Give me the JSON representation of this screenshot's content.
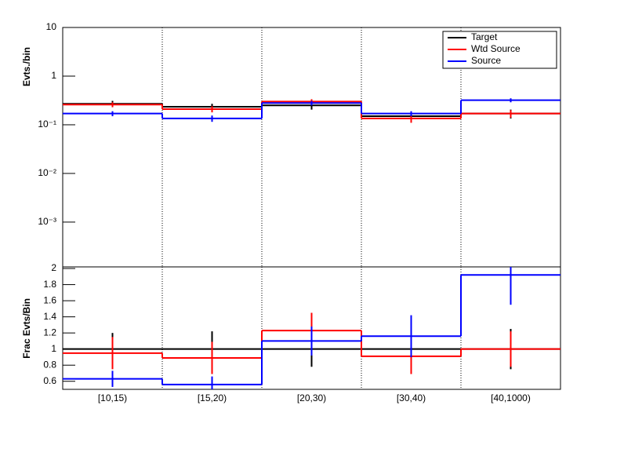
{
  "chart_data": [
    {
      "type": "step",
      "y_label": "Evts./bin",
      "log_y": true,
      "ylim": [
        0.00012,
        10
      ],
      "yticks": [
        {
          "value": 0.001,
          "label": "10⁻³"
        },
        {
          "value": 0.01,
          "label": "10⁻²"
        },
        {
          "value": 0.1,
          "label": "10⁻¹"
        },
        1,
        10
      ],
      "legend": "top-right",
      "series": [
        {
          "name": "Target",
          "color": "#000000",
          "values": [
            0.27,
            0.235,
            0.25,
            0.15,
            0.17
          ],
          "errors": [
            0.04,
            0.035,
            0.045,
            0.03,
            0.035
          ]
        },
        {
          "name": "Wtd Source",
          "color": "#ff0000",
          "values": [
            0.26,
            0.21,
            0.3,
            0.135,
            0.17
          ],
          "errors": [
            0.03,
            0.03,
            0.035,
            0.025,
            0.03
          ]
        },
        {
          "name": "Source",
          "color": "#0000ff",
          "values": [
            0.17,
            0.135,
            0.28,
            0.17,
            0.32
          ],
          "errors": [
            0.02,
            0.02,
            0.03,
            0.02,
            0.03
          ]
        }
      ]
    },
    {
      "type": "step",
      "y_label": "Frac Evts/Bin",
      "ylim": [
        0.5,
        2.02
      ],
      "yticks": [
        0.6,
        0.8,
        1,
        1.2,
        1.4,
        1.6,
        1.8,
        2
      ],
      "categories": [
        "[10,15)",
        "[15,20)",
        "[20,30)",
        "[30,40)",
        "[40,1000)"
      ],
      "series": [
        {
          "name": "Target",
          "color": "#000000",
          "values": [
            1,
            1,
            1,
            1,
            1
          ],
          "errors": [
            0.2,
            0.22,
            0.22,
            0.2,
            0.25
          ]
        },
        {
          "name": "Wtd Source",
          "color": "#ff0000",
          "values": [
            0.95,
            0.89,
            1.23,
            0.91,
            1.0
          ],
          "errors": [
            0.2,
            0.2,
            0.22,
            0.22,
            0.22
          ]
        },
        {
          "name": "Source",
          "color": "#0000ff",
          "values": [
            0.63,
            0.56,
            1.1,
            1.16,
            1.92
          ],
          "errors": [
            0.1,
            0.1,
            0.18,
            0.26,
            0.37
          ]
        }
      ]
    }
  ]
}
